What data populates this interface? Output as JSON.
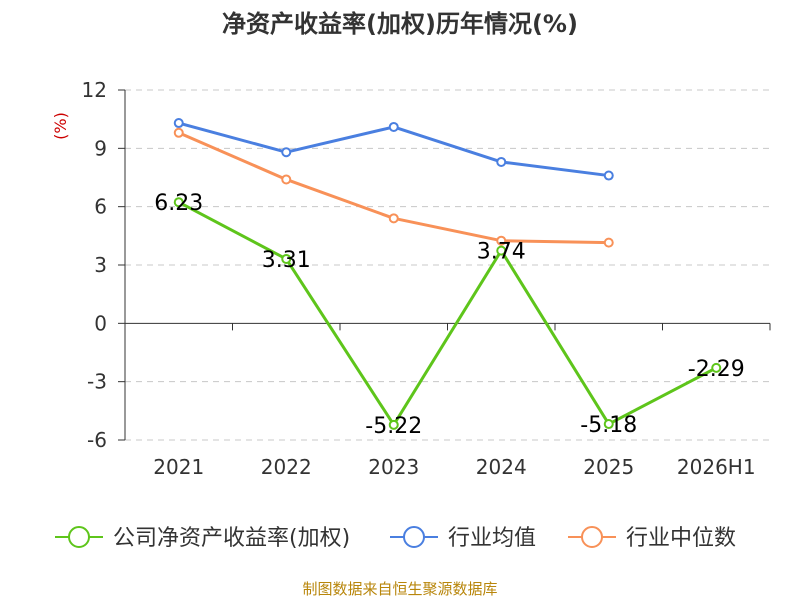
{
  "chart_data": {
    "type": "line",
    "title": "净资产收益率(加权)历年情况(%)",
    "ylabel": "(%)",
    "categories": [
      "2021",
      "2022",
      "2023",
      "2024",
      "2025",
      "2026H1"
    ],
    "ylim": [
      -6,
      12
    ],
    "yticks": [
      "12",
      "9",
      "6",
      "3",
      "0",
      "-3",
      "-6"
    ],
    "ytick_values": [
      12,
      9,
      6,
      3,
      0,
      -3,
      -6
    ],
    "grid": true,
    "legend_position": "bottom",
    "series": [
      {
        "name": "公司净资产收益率(加权)",
        "color": "#5ec51b",
        "values": [
          6.23,
          3.31,
          -5.22,
          3.74,
          -5.18,
          -2.29
        ],
        "labels": [
          "6.23",
          "3.31",
          "-5.22",
          "3.74",
          "-5.18",
          "-2.29"
        ]
      },
      {
        "name": "行业均值",
        "color": "#4a7fe0",
        "values": [
          10.3,
          8.8,
          10.1,
          8.3,
          7.6,
          null
        ]
      },
      {
        "name": "行业中位数",
        "color": "#f89158",
        "values": [
          9.8,
          7.4,
          5.4,
          4.25,
          4.15,
          null
        ]
      }
    ]
  },
  "source": "制图数据来自恒生聚源数据库"
}
